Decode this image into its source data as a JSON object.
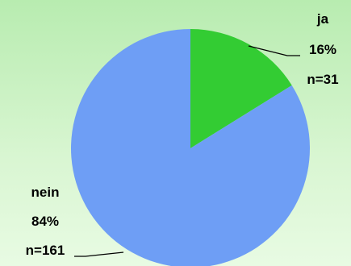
{
  "chart_data": {
    "type": "pie",
    "title": "",
    "slices": [
      {
        "category": "ja",
        "percent_label": "16%",
        "count_label": "n=31",
        "value": 31,
        "color": "#33cc33"
      },
      {
        "category": "nein",
        "percent_label": "84%",
        "count_label": "n=161",
        "value": 161,
        "color": "#6e9ef5"
      }
    ]
  }
}
